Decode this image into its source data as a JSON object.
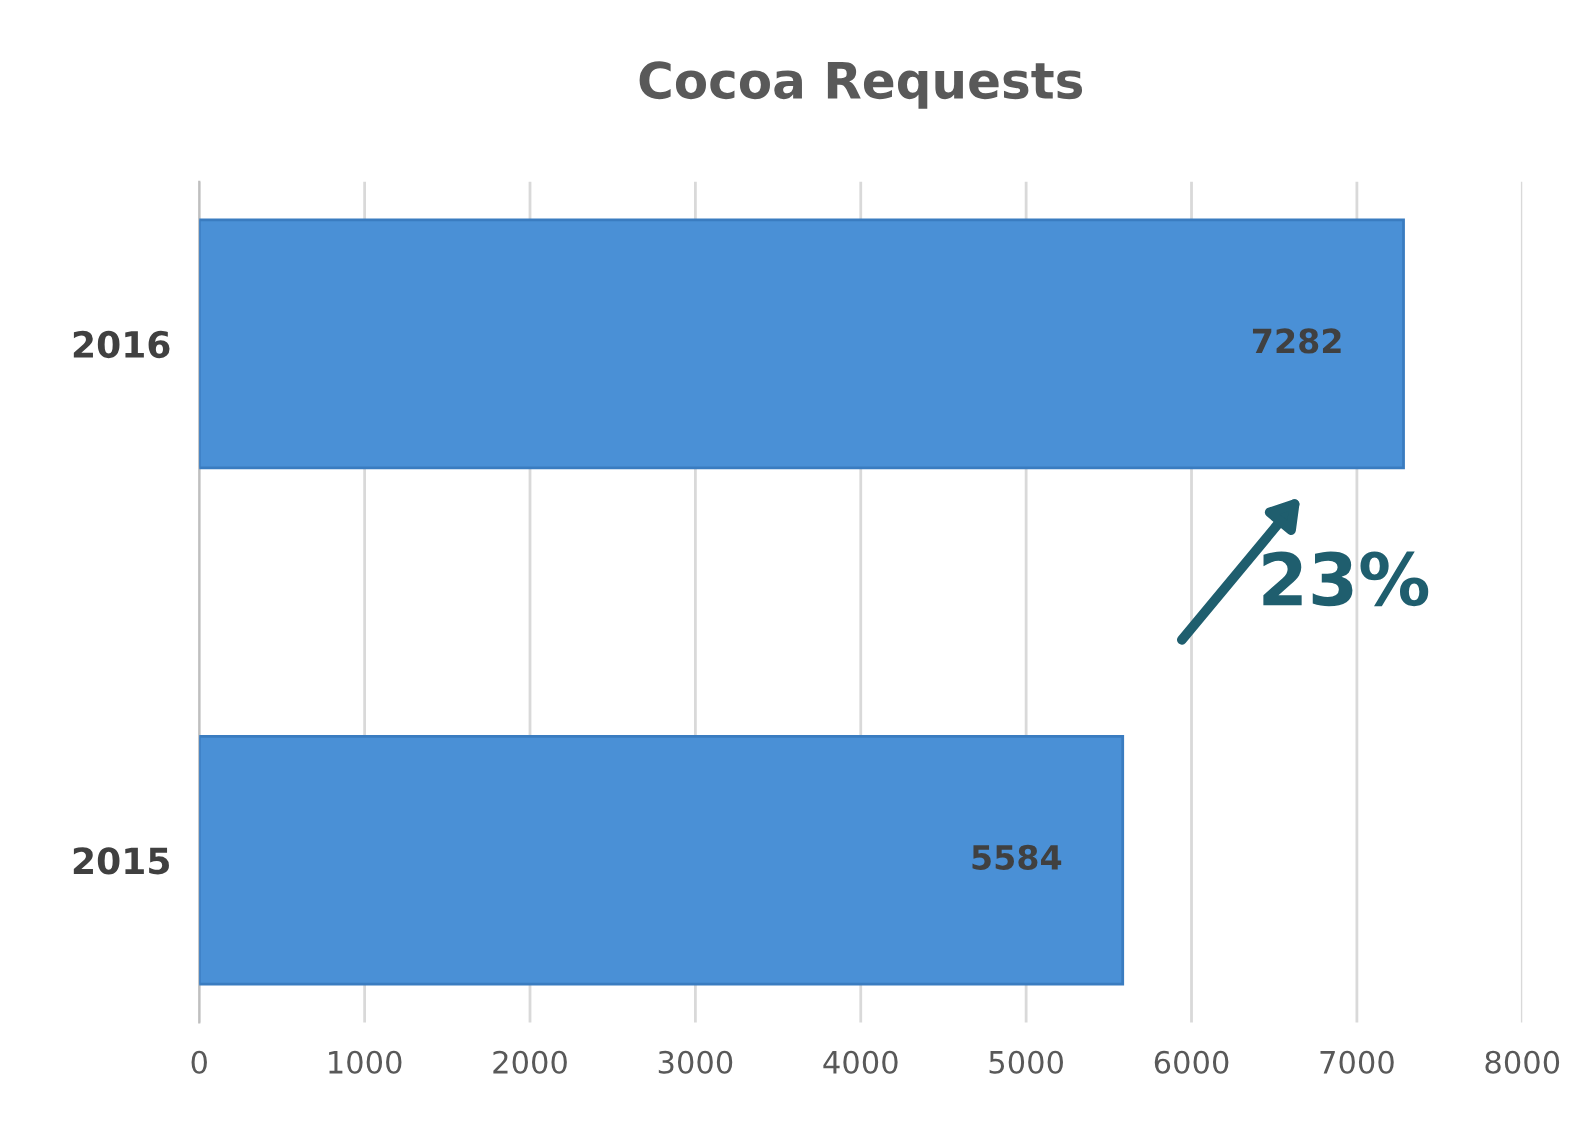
{
  "chart_data": {
    "type": "bar",
    "orientation": "horizontal",
    "title": "Cocoa Requests",
    "categories": [
      "2016",
      "2015"
    ],
    "values": [
      7282,
      5584
    ],
    "color": "#4a90d6",
    "data_labels": true,
    "xlim": [
      0,
      8000
    ],
    "xticks": [
      0,
      1000,
      2000,
      3000,
      4000,
      5000,
      6000,
      7000,
      8000
    ],
    "grid": "x",
    "legend": false,
    "annotations": [
      "23%"
    ]
  }
}
